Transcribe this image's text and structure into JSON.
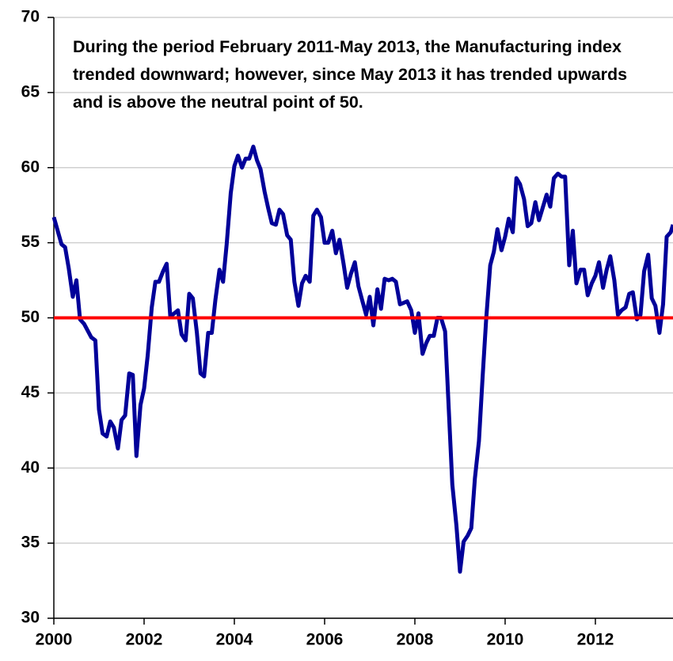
{
  "chart_data": {
    "type": "line",
    "annotation": "During the period February 2011-May 2013, the Manufacturing index trended downward; however, since May 2013 it has trended upwards and is above the neutral point of 50.",
    "x": [
      2000.0,
      2000.17,
      2000.25,
      2000.33,
      2000.42,
      2000.5,
      2000.58,
      2000.67,
      2000.83,
      2000.92,
      2001.0,
      2001.08,
      2001.17,
      2001.25,
      2001.33,
      2001.42,
      2001.5,
      2001.58,
      2001.67,
      2001.75,
      2001.83,
      2001.92,
      2002.0,
      2002.08,
      2002.17,
      2002.25,
      2002.33,
      2002.42,
      2002.5,
      2002.58,
      2002.67,
      2002.75,
      2002.83,
      2002.92,
      2003.0,
      2003.08,
      2003.17,
      2003.25,
      2003.33,
      2003.42,
      2003.5,
      2003.58,
      2003.67,
      2003.75,
      2003.83,
      2003.92,
      2004.0,
      2004.08,
      2004.17,
      2004.25,
      2004.33,
      2004.42,
      2004.5,
      2004.58,
      2004.67,
      2004.75,
      2004.83,
      2004.92,
      2005.0,
      2005.08,
      2005.17,
      2005.25,
      2005.33,
      2005.42,
      2005.5,
      2005.58,
      2005.67,
      2005.75,
      2005.83,
      2005.92,
      2006.0,
      2006.08,
      2006.17,
      2006.25,
      2006.33,
      2006.42,
      2006.5,
      2006.58,
      2006.67,
      2006.75,
      2006.83,
      2006.92,
      2007.0,
      2007.08,
      2007.17,
      2007.25,
      2007.33,
      2007.42,
      2007.5,
      2007.58,
      2007.67,
      2007.75,
      2007.83,
      2007.92,
      2008.0,
      2008.08,
      2008.17,
      2008.25,
      2008.33,
      2008.42,
      2008.5,
      2008.58,
      2008.67,
      2008.75,
      2008.83,
      2008.92,
      2009.0,
      2009.08,
      2009.17,
      2009.25,
      2009.33,
      2009.42,
      2009.5,
      2009.58,
      2009.67,
      2009.75,
      2009.83,
      2009.92,
      2010.0,
      2010.08,
      2010.17,
      2010.25,
      2010.33,
      2010.42,
      2010.5,
      2010.58,
      2010.67,
      2010.75,
      2010.83,
      2010.92,
      2011.0,
      2011.08,
      2011.17,
      2011.25,
      2011.33,
      2011.42,
      2011.5,
      2011.58,
      2011.67,
      2011.75,
      2011.83,
      2011.92,
      2012.0,
      2012.08,
      2012.17,
      2012.25,
      2012.33,
      2012.42,
      2012.5,
      2012.58,
      2012.67,
      2012.75,
      2012.83,
      2012.92,
      2013.0,
      2013.08,
      2013.17,
      2013.25,
      2013.33,
      2013.42,
      2013.5,
      2013.58,
      2013.67,
      2013.72
    ],
    "series": [
      {
        "name": "Manufacturing index",
        "color": "#000099",
        "values": [
          56.7,
          54.9,
          54.7,
          53.3,
          51.4,
          52.5,
          49.9,
          49.6,
          48.7,
          48.5,
          43.9,
          42.3,
          42.1,
          43.1,
          42.7,
          41.3,
          43.2,
          43.5,
          46.3,
          46.2,
          40.8,
          44.2,
          45.3,
          47.5,
          50.7,
          52.4,
          52.4,
          53.1,
          53.6,
          50.1,
          50.3,
          50.5,
          48.9,
          48.5,
          51.6,
          51.3,
          49.0,
          46.3,
          46.1,
          49.0,
          49.0,
          51.2,
          53.2,
          52.4,
          54.9,
          58.3,
          60.1,
          60.8,
          60.0,
          60.6,
          60.6,
          61.4,
          60.5,
          59.9,
          58.4,
          57.3,
          56.3,
          56.2,
          57.2,
          56.9,
          55.5,
          55.2,
          52.4,
          50.8,
          52.3,
          52.8,
          52.4,
          56.8,
          57.2,
          56.7,
          55.0,
          55.0,
          55.8,
          54.3,
          55.2,
          53.6,
          52.0,
          52.9,
          53.7,
          52.1,
          51.2,
          50.2,
          51.4,
          49.5,
          51.9,
          50.6,
          52.6,
          52.5,
          52.6,
          52.4,
          50.9,
          51.0,
          51.1,
          50.5,
          49.0,
          50.3,
          47.6,
          48.3,
          48.8,
          48.8,
          50.0,
          50.0,
          49.1,
          44.0,
          38.9,
          36.2,
          33.1,
          35.1,
          35.5,
          36.0,
          39.3,
          41.8,
          46.0,
          49.9,
          53.5,
          54.4,
          55.9,
          54.5,
          55.4,
          56.6,
          55.7,
          59.3,
          58.9,
          57.9,
          56.1,
          56.3,
          57.7,
          56.5,
          57.3,
          58.2,
          57.4,
          59.3,
          59.6,
          59.4,
          59.4,
          53.5,
          55.8,
          52.3,
          53.2,
          53.2,
          51.5,
          52.3,
          52.8,
          53.7,
          52.0,
          53.2,
          54.1,
          52.5,
          50.2,
          50.5,
          50.7,
          51.6,
          51.7,
          49.9,
          50.2,
          53.1,
          54.2,
          51.3,
          50.8,
          49.0,
          50.9,
          55.4,
          55.7,
          56.2
        ]
      }
    ],
    "reference_line": {
      "value": 50,
      "color": "#ff0000"
    },
    "xlim": [
      2000,
      2013.72
    ],
    "xticks": [
      2000,
      2002,
      2004,
      2006,
      2008,
      2010,
      2012
    ],
    "ylim": [
      30,
      70
    ],
    "yticks": [
      30,
      35,
      40,
      45,
      50,
      55,
      60,
      65,
      70
    ],
    "grid": true
  }
}
